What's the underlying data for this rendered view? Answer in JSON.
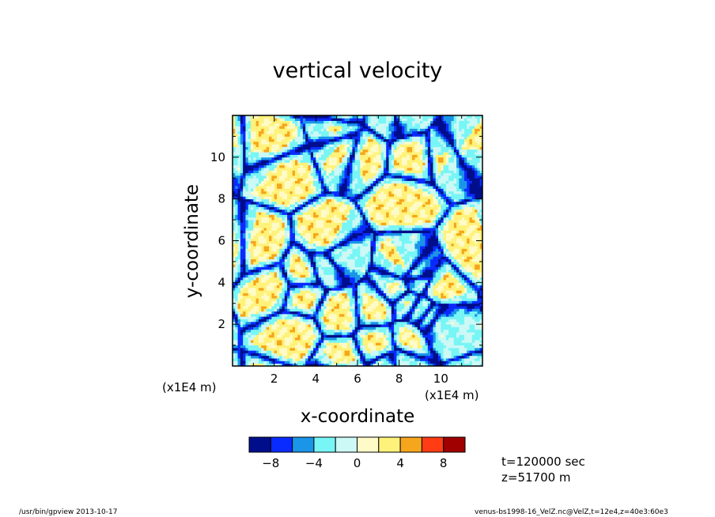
{
  "chart_data": {
    "type": "heatmap",
    "title": "vertical velocity",
    "xlabel": "x-coordinate",
    "ylabel": "y-coordinate",
    "x_unit": "(x1E4 m)",
    "y_unit": "(x1E4 m)",
    "xlim": [
      0,
      12
    ],
    "ylim": [
      0,
      12
    ],
    "x_ticks": [
      2,
      4,
      6,
      8,
      10
    ],
    "y_ticks": [
      2,
      4,
      6,
      8,
      10
    ],
    "colorbar": {
      "levels": [
        -10,
        -8,
        -6,
        -4,
        -2,
        0,
        2,
        4,
        6,
        8,
        10
      ],
      "labels": [
        -8,
        -4,
        0,
        4,
        8
      ],
      "colors": [
        "#000e8c",
        "#0a2bff",
        "#1a95e8",
        "#78f5f5",
        "#ccf8f5",
        "#fffbc8",
        "#fff27a",
        "#f5a61d",
        "#ff3c14",
        "#a00000"
      ]
    }
  },
  "annotations": {
    "time": "t=120000 sec",
    "height": "z=51700 m"
  },
  "footer": {
    "left": "/usr/bin/gpview   2013-10-17",
    "right": "venus-bs1998-16_VelZ.nc@VelZ,t=12e4,z=40e3:60e3"
  }
}
